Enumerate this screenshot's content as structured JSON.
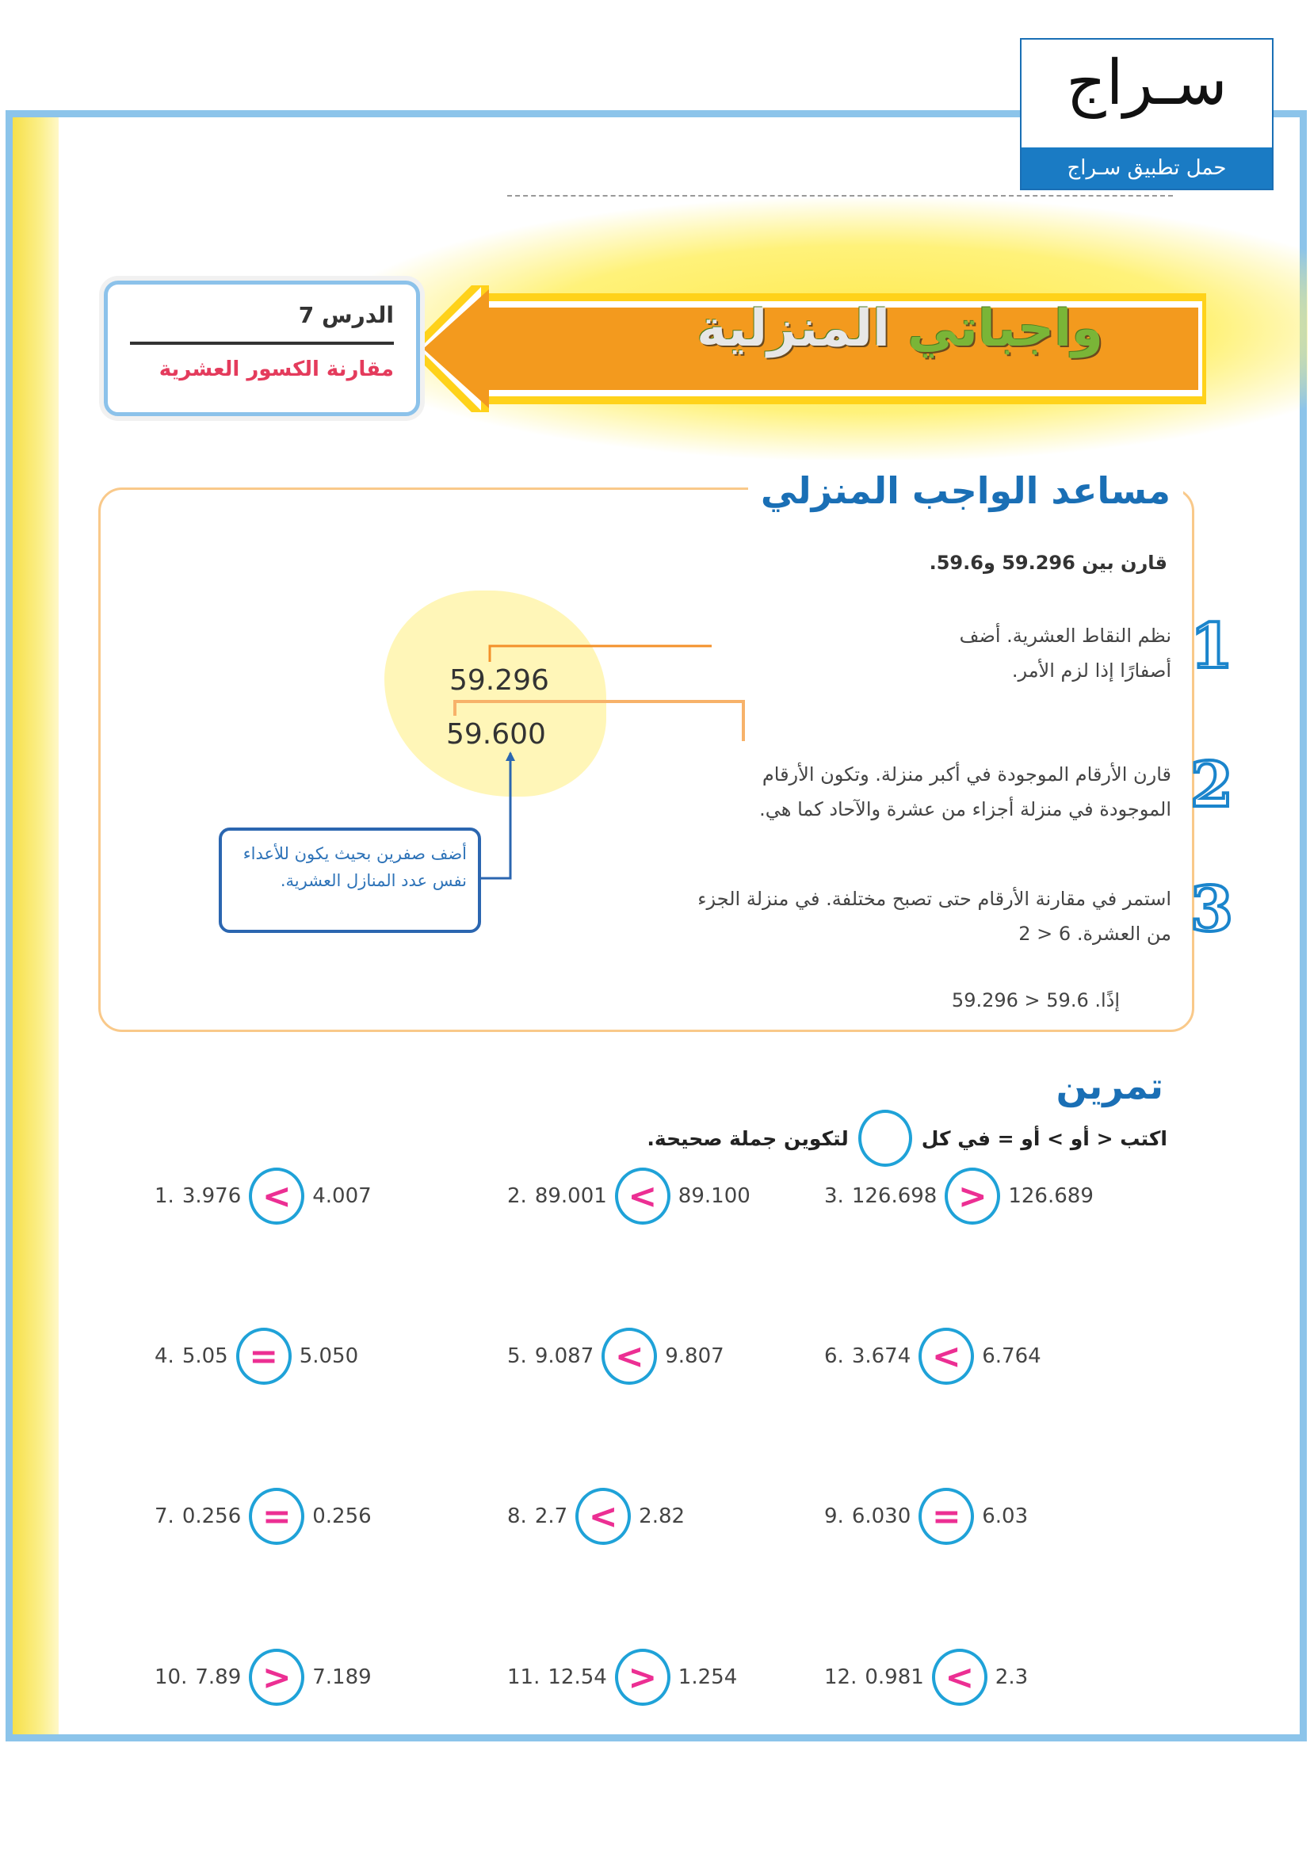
{
  "logo": {
    "word": "سـراج",
    "tagline": "حمل تطبيق سـراج"
  },
  "banner": {
    "title_part1": "واجباتي",
    "title_part2": "المنزلية",
    "colors": {
      "arrow": "#f39a1e",
      "title_green": "#7ab537"
    }
  },
  "lesson": {
    "number": "الدرس 7",
    "name": "مقارنة الكسور العشرية"
  },
  "helper": {
    "title": "مساعد الواجب المنزلي",
    "prompt": "قارن بين 59.296 و59.6.",
    "numbers": [
      "59.296",
      "59.600"
    ],
    "callout": "أضف صفرين بحيث يكون للأعداء نفس عدد المنازل العشرية.",
    "steps": [
      {
        "num": "1",
        "lines": [
          "نظم النقاط العشرية. أضف",
          "أصفارًا إذا لزم الأمر."
        ]
      },
      {
        "num": "2",
        "lines": [
          "قارن الأرقام الموجودة في أكبر منزلة. وتكون الأرقام",
          "الموجودة في منزلة أجزاء من عشرة والآحاد كما هي."
        ]
      },
      {
        "num": "3",
        "lines": [
          "استمر في مقارنة الأرقام حتى تصبح مختلفة. في منزلة الجزء",
          "من العشرة. 6 < 2"
        ]
      }
    ],
    "conclusion": "إذًا. 59.6 < 59.296"
  },
  "exercise": {
    "title": "تمرين",
    "instruction_before": "اكتب < أو > أو = في كل",
    "instruction_after": "لتكوين جملة صحيحة.",
    "items": [
      {
        "n": "1.",
        "a": "3.976",
        "op": "<",
        "b": "4.007"
      },
      {
        "n": "2.",
        "a": "89.001",
        "op": "<",
        "b": "89.100"
      },
      {
        "n": "3.",
        "a": "126.698",
        "op": ">",
        "b": "126.689"
      },
      {
        "n": "4.",
        "a": "5.05",
        "op": "=",
        "b": "5.050"
      },
      {
        "n": "5.",
        "a": "9.087",
        "op": "<",
        "b": "9.807"
      },
      {
        "n": "6.",
        "a": "3.674",
        "op": "<",
        "b": "6.764"
      },
      {
        "n": "7.",
        "a": "0.256",
        "op": "=",
        "b": "0.256"
      },
      {
        "n": "8.",
        "a": "2.7",
        "op": "<",
        "b": "2.82"
      },
      {
        "n": "9.",
        "a": "6.030",
        "op": "=",
        "b": "6.03"
      },
      {
        "n": "10.",
        "a": "7.89",
        "op": ">",
        "b": "7.189"
      },
      {
        "n": "11.",
        "a": "12.54",
        "op": ">",
        "b": "1.254"
      },
      {
        "n": "12.",
        "a": "0.981",
        "op": "<",
        "b": "2.3"
      }
    ]
  }
}
